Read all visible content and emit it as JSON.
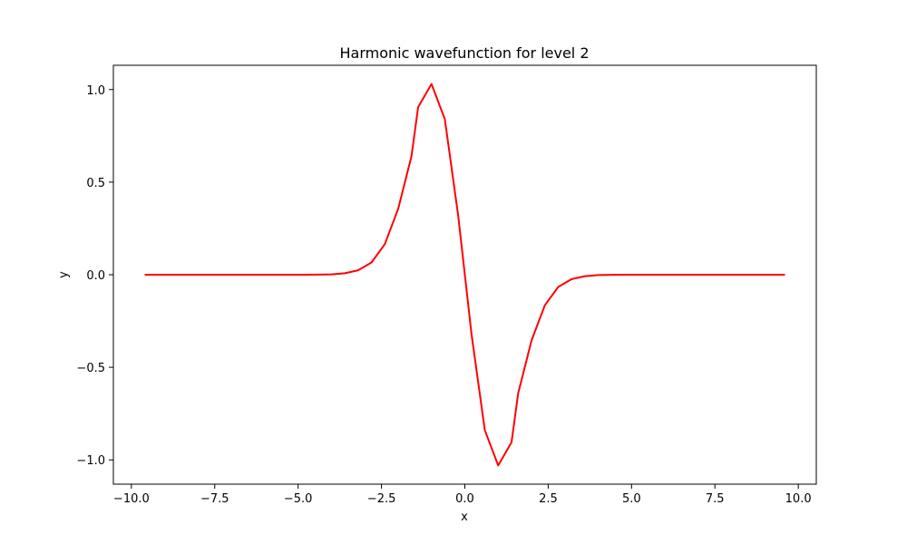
{
  "colors": {
    "line": "#ff0000",
    "axes": "#000000",
    "background": "#ffffff"
  },
  "chart_data": {
    "type": "line",
    "title": "Harmonic wavefunction for level 2",
    "xlabel": "x",
    "ylabel": "y",
    "xlim": [
      -10.54,
      10.54
    ],
    "ylim": [
      -1.131,
      1.131
    ],
    "grid": false,
    "x_ticks": [
      {
        "value": -10.0,
        "label": "−10.0"
      },
      {
        "value": -7.5,
        "label": "−7.5"
      },
      {
        "value": -5.0,
        "label": "−5.0"
      },
      {
        "value": -2.5,
        "label": "−2.5"
      },
      {
        "value": 0.0,
        "label": "0.0"
      },
      {
        "value": 2.5,
        "label": "2.5"
      },
      {
        "value": 5.0,
        "label": "5.0"
      },
      {
        "value": 7.5,
        "label": "7.5"
      },
      {
        "value": 10.0,
        "label": "10.0"
      }
    ],
    "y_ticks": [
      {
        "value": -1.0,
        "label": "−1.0"
      },
      {
        "value": -0.5,
        "label": "−0.5"
      },
      {
        "value": 0.0,
        "label": "0.0"
      },
      {
        "value": 0.5,
        "label": "0.5"
      },
      {
        "value": 1.0,
        "label": "1.0"
      }
    ],
    "series": [
      {
        "name": "level 2",
        "x": [
          -9.6,
          -9.2,
          -8.8,
          -8.4,
          -8.0,
          -7.6,
          -7.2,
          -6.8,
          -6.4,
          -6.0,
          -5.6,
          -5.2,
          -4.8,
          -4.4,
          -4.0,
          -3.6,
          -3.2,
          -2.8,
          -2.4,
          -2.0,
          -1.6,
          -1.4,
          -1.0,
          -0.6,
          -0.2,
          0.2,
          0.6,
          1.0,
          1.4,
          1.6,
          2.0,
          2.4,
          2.8,
          3.2,
          3.6,
          4.0,
          4.4,
          4.8,
          5.2,
          5.6,
          6.0,
          6.4,
          6.8,
          7.2,
          7.6,
          8.0,
          8.4,
          8.8,
          9.2,
          9.6
        ],
        "y": [
          0,
          0,
          0,
          0,
          0,
          0,
          0,
          0,
          0,
          0,
          0,
          0,
          0,
          0.0005,
          0.002,
          0.008,
          0.024,
          0.066,
          0.165,
          0.355,
          0.64,
          0.905,
          1.03,
          0.84,
          0.32,
          -0.32,
          -0.84,
          -1.03,
          -0.905,
          -0.64,
          -0.355,
          -0.165,
          -0.066,
          -0.024,
          -0.008,
          -0.002,
          -0.0005,
          0,
          0,
          0,
          0,
          0,
          0,
          0,
          0,
          0,
          0,
          0,
          0,
          0
        ]
      }
    ]
  }
}
